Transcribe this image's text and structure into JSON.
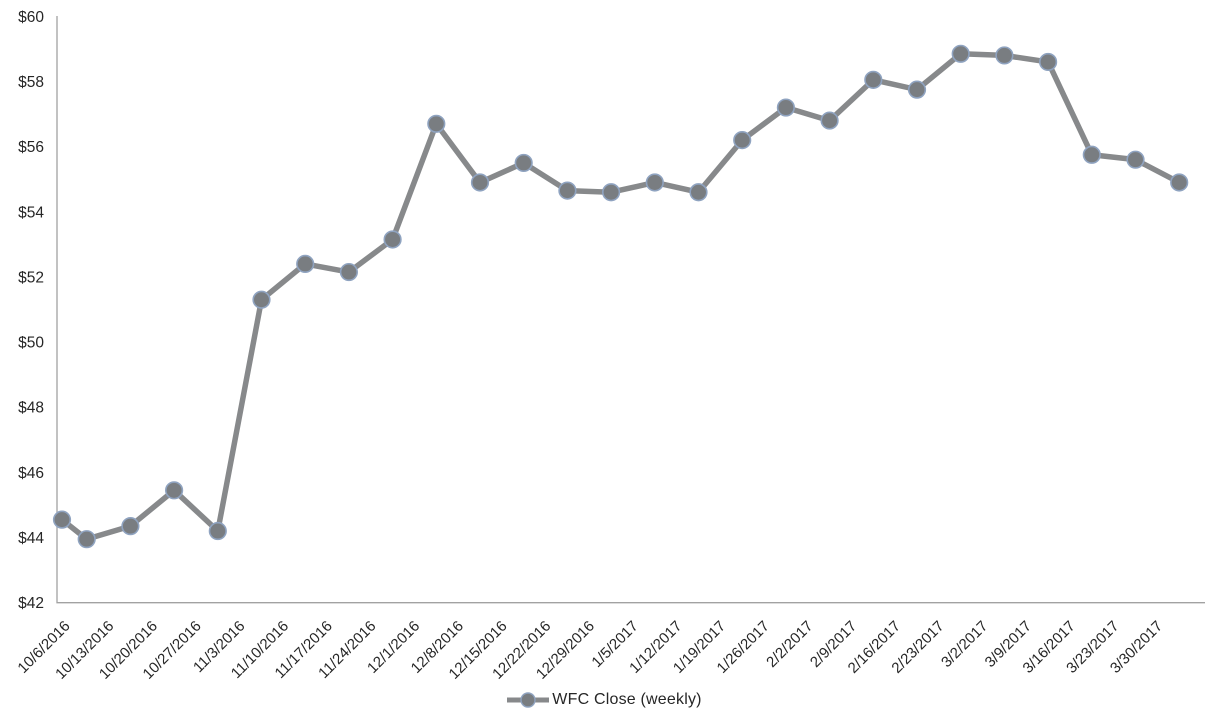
{
  "chart_data": {
    "type": "line",
    "title": "",
    "xlabel": "",
    "ylabel": "",
    "x_tick_labels": [
      "10/6/2016",
      "10/13/2016",
      "10/20/2016",
      "10/27/2016",
      "11/3/2016",
      "11/10/2016",
      "11/17/2016",
      "11/24/2016",
      "12/1/2016",
      "12/8/2016",
      "12/15/2016",
      "12/22/2016",
      "12/29/2016",
      "1/5/2017",
      "1/12/2017",
      "1/19/2017",
      "1/26/2017",
      "2/2/2017",
      "2/9/2017",
      "2/16/2017",
      "2/23/2017",
      "3/2/2017",
      "3/9/2017",
      "3/16/2017",
      "3/23/2017",
      "3/30/2017"
    ],
    "series": [
      {
        "name": "WFC Close (weekly)",
        "values": [
          44.55,
          43.95,
          44.35,
          45.45,
          44.2,
          51.3,
          52.4,
          52.15,
          53.15,
          56.7,
          54.9,
          55.5,
          54.65,
          54.6,
          54.9,
          54.6,
          56.2,
          57.2,
          56.8,
          58.05,
          57.75,
          58.85,
          58.8,
          58.6,
          55.75,
          55.6,
          54.9
        ]
      }
    ],
    "y_tick_labels": [
      "$42",
      "$44",
      "$46",
      "$48",
      "$50",
      "$52",
      "$54",
      "$56",
      "$58",
      "$60"
    ],
    "y_tick_values": [
      42,
      44,
      46,
      48,
      50,
      52,
      54,
      56,
      58,
      60
    ],
    "ylim": [
      42,
      60
    ],
    "grid": false,
    "legend_position": "bottom",
    "marker": "circle",
    "notes": "last data point has no x-axis label"
  },
  "legend": {
    "label": "WFC Close (weekly)"
  },
  "colors": {
    "line": "#87898b",
    "marker_fill": "#797d81",
    "marker_stroke": "#8fa3c0",
    "axis_line": "#a2a2a2",
    "tick_text": "#262626",
    "background": "#ffffff"
  }
}
